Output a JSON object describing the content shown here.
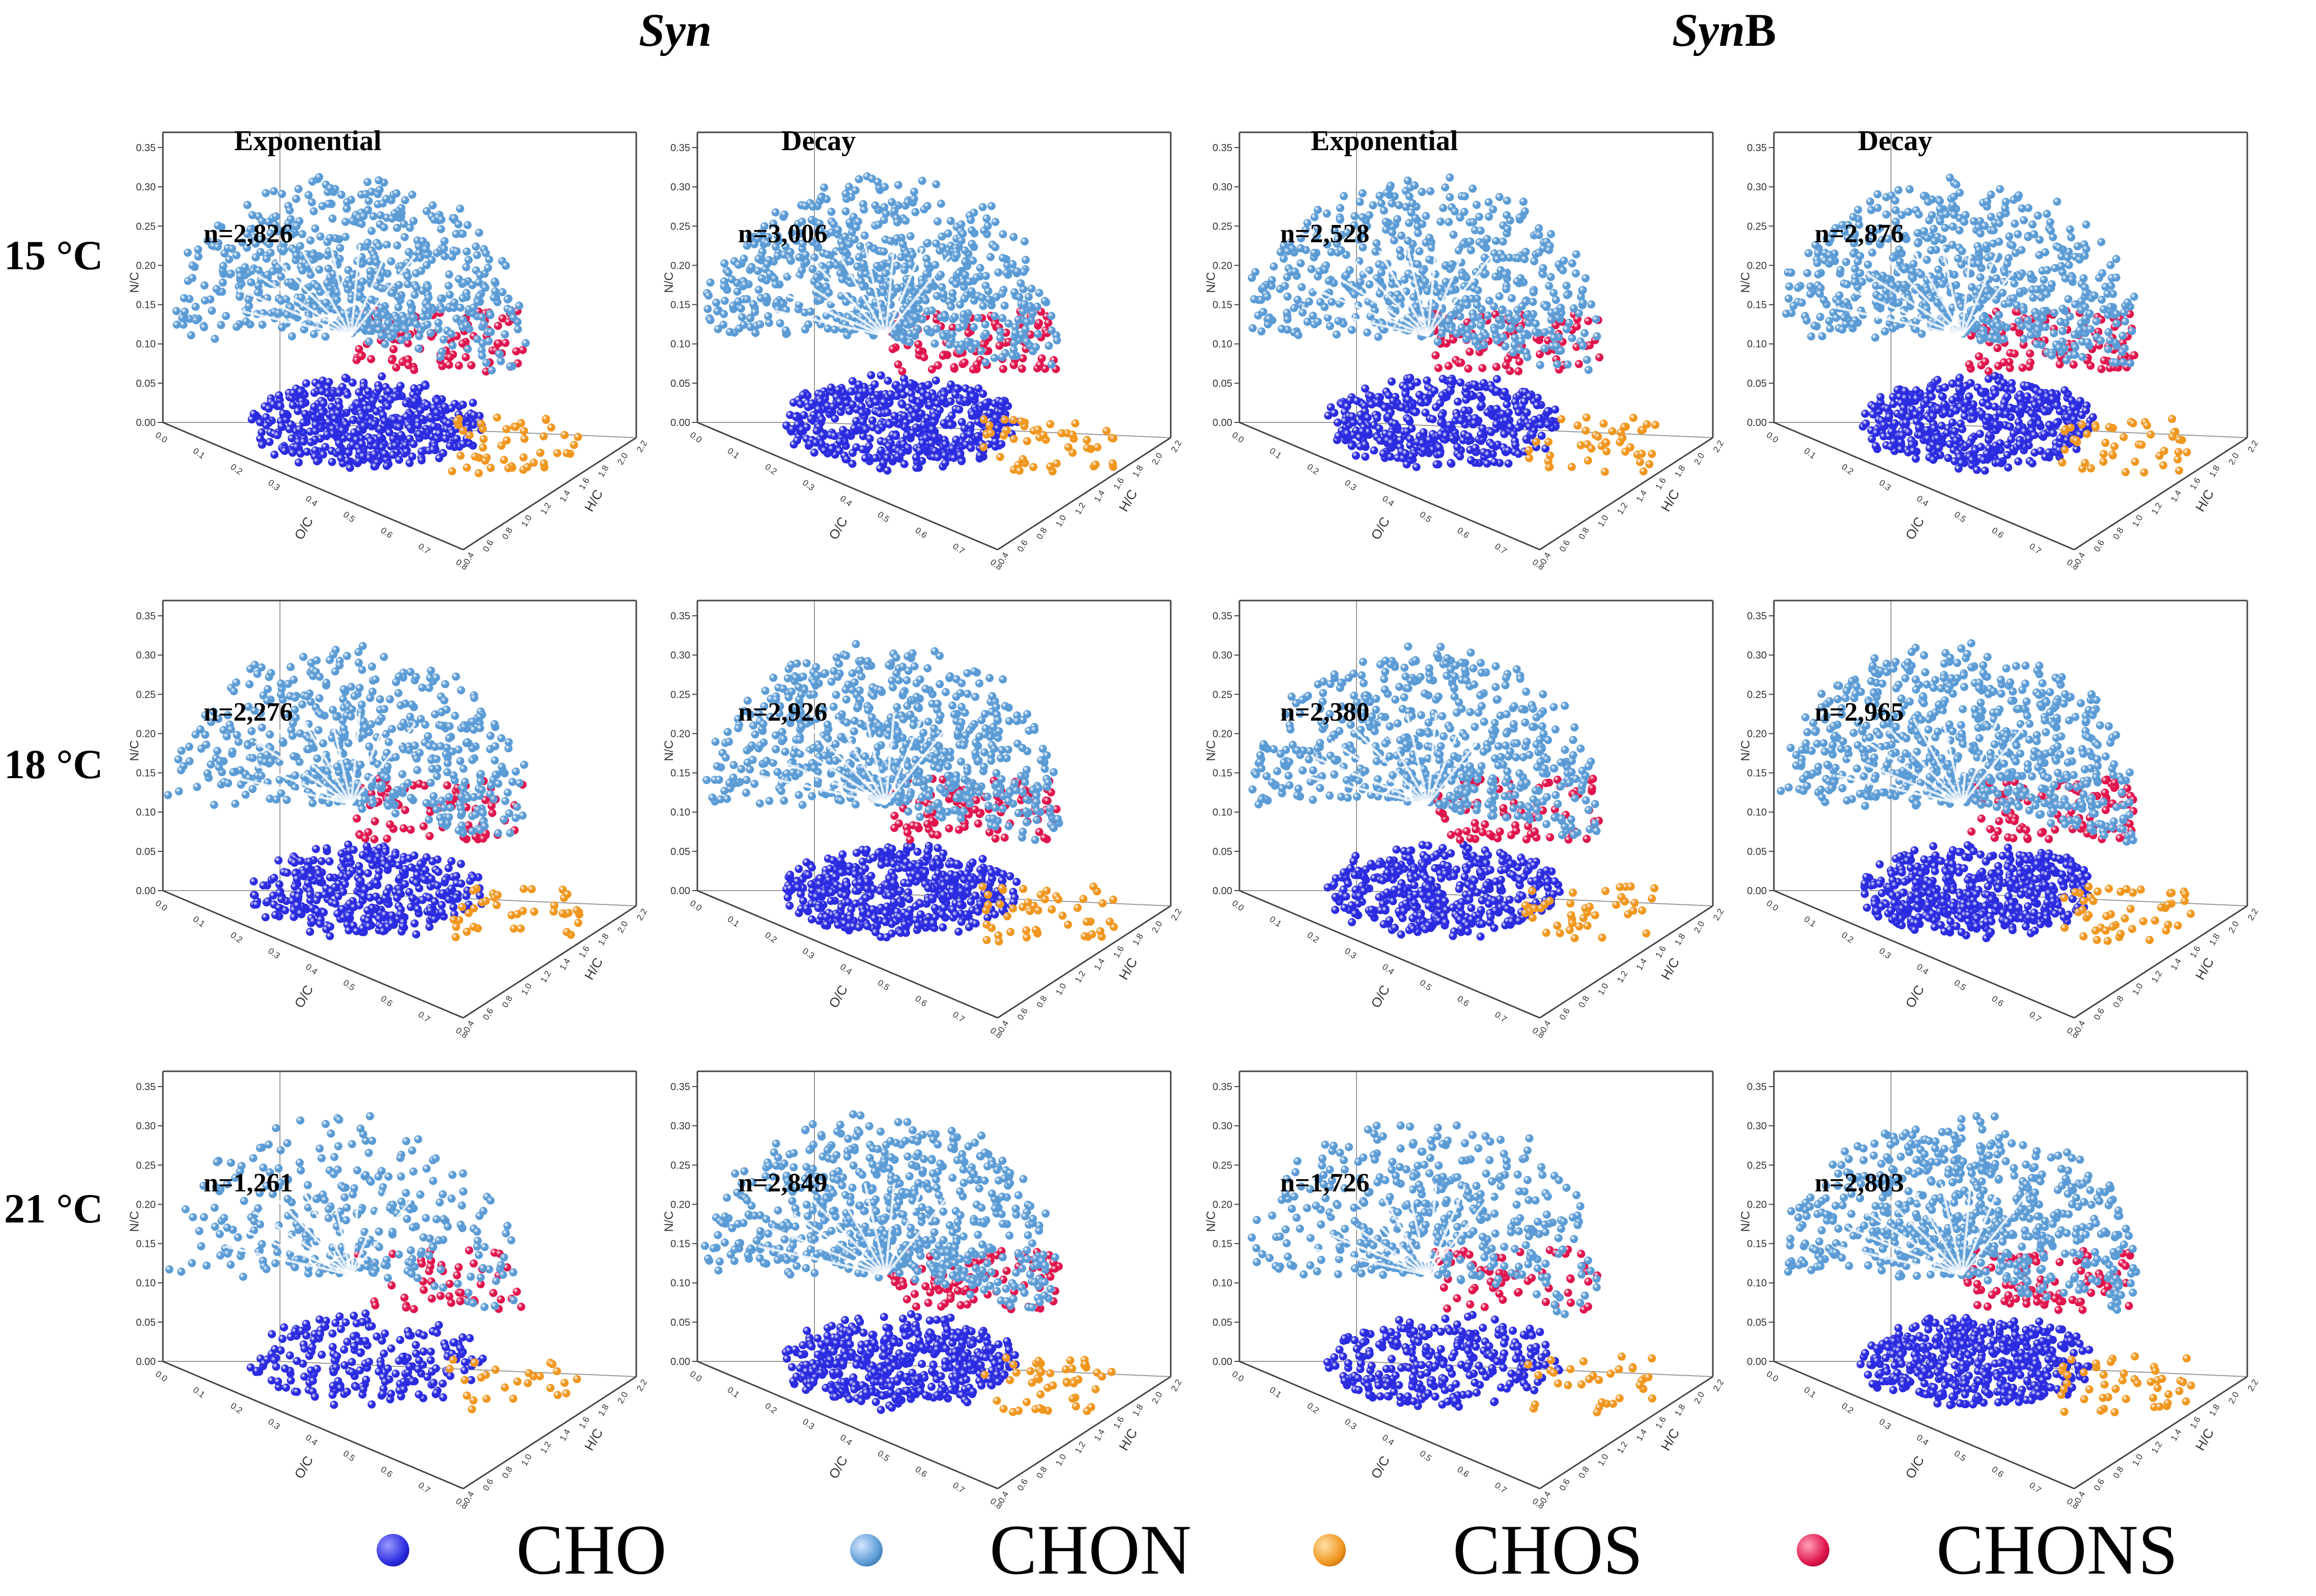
{
  "column_groups": [
    {
      "italic": "Syn",
      "plain": ""
    },
    {
      "italic": "Syn",
      "plain": "B"
    }
  ],
  "row_labels": [
    "15 °C",
    "18 °C",
    "21 °C"
  ],
  "colors": {
    "CHO": "#2b2be0",
    "CHON": "#5b9bd5",
    "CHOS": "#f0961e",
    "CHONS": "#e0144c"
  },
  "axes": {
    "z_label": "N/C",
    "x_label": "O/C",
    "y_label": "H/C",
    "z_ticks": [
      "0.00",
      "0.05",
      "0.10",
      "0.15",
      "0.20",
      "0.25",
      "0.30",
      "0.35"
    ],
    "x_ticks": [
      "0.0",
      "0.1",
      "0.2",
      "0.3",
      "0.4",
      "0.5",
      "0.6",
      "0.7",
      "0.8"
    ],
    "y_ticks": [
      "0.4",
      "0.6",
      "0.8",
      "1.0",
      "1.2",
      "1.4",
      "1.6",
      "1.8",
      "2.0",
      "2.2"
    ]
  },
  "chart_data": [
    {
      "type": "scatter",
      "group": "Syn",
      "row": "15 °C",
      "phase": "Exponential",
      "n_label": "n=2,826",
      "n": 2826
    },
    {
      "type": "scatter",
      "group": "Syn",
      "row": "15 °C",
      "phase": "Decay",
      "n_label": "n=3,006",
      "n": 3006
    },
    {
      "type": "scatter",
      "group": "SynB",
      "row": "15 °C",
      "phase": "Exponential",
      "n_label": "n=2,528",
      "n": 2528
    },
    {
      "type": "scatter",
      "group": "SynB",
      "row": "15 °C",
      "phase": "Decay",
      "n_label": "n=2,876",
      "n": 2876
    },
    {
      "type": "scatter",
      "group": "Syn",
      "row": "18 °C",
      "phase": "Exponential",
      "n_label": "n=2,276",
      "n": 2276
    },
    {
      "type": "scatter",
      "group": "Syn",
      "row": "18 °C",
      "phase": "Decay",
      "n_label": "n=2,926",
      "n": 2926
    },
    {
      "type": "scatter",
      "group": "SynB",
      "row": "18 °C",
      "phase": "Exponential",
      "n_label": "n=2,380",
      "n": 2380
    },
    {
      "type": "scatter",
      "group": "SynB",
      "row": "18 °C",
      "phase": "Decay",
      "n_label": "n=2,965",
      "n": 2965
    },
    {
      "type": "scatter",
      "group": "Syn",
      "row": "21 °C",
      "phase": "Exponential",
      "n_label": "n=1,261",
      "n": 1261
    },
    {
      "type": "scatter",
      "group": "Syn",
      "row": "21 °C",
      "phase": "Decay",
      "n_label": "n=2,849",
      "n": 2849
    },
    {
      "type": "scatter",
      "group": "SynB",
      "row": "21 °C",
      "phase": "Exponential",
      "n_label": "n=1,726",
      "n": 1726
    },
    {
      "type": "scatter",
      "group": "SynB",
      "row": "21 °C",
      "phase": "Decay",
      "n_label": "n=2,803",
      "n": 2803
    }
  ],
  "column_headers": [
    "Exponential",
    "Decay",
    "Exponential",
    "Decay"
  ],
  "legend": [
    {
      "name": "CHO",
      "color": "#2b2be0"
    },
    {
      "name": "CHON",
      "color": "#5b9bd5"
    },
    {
      "name": "CHOS",
      "color": "#f0961e"
    },
    {
      "name": "CHONS",
      "color": "#e0144c"
    }
  ]
}
